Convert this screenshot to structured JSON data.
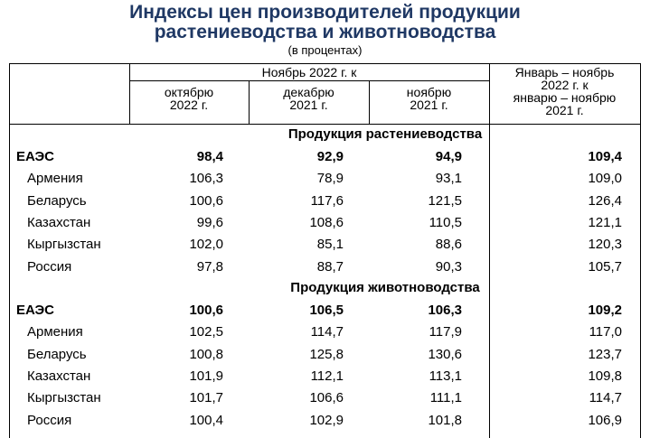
{
  "title_line1": "Индексы цен производителей продукции",
  "title_line2": "растениеводства и животноводства",
  "subtitle": "(в процентах)",
  "header": {
    "group": "Ноябрь 2022 г. к",
    "cols": [
      "октябрю\n2022 г.",
      "декабрю\n2021 г.",
      "ноябрю\n2021 г."
    ],
    "last": "Январь – ноябрь\n2022 г. к\nянварю – ноябрю\n2021 г."
  },
  "sections": [
    {
      "title": "Продукция растениеводства",
      "rows": [
        {
          "name": "ЕАЭС",
          "values": [
            "98,4",
            "92,9",
            "94,9",
            "109,4"
          ]
        },
        {
          "name": "Армения",
          "values": [
            "106,3",
            "78,9",
            "93,1",
            "109,0"
          ]
        },
        {
          "name": "Беларусь",
          "values": [
            "100,6",
            "117,6",
            "121,5",
            "126,4"
          ]
        },
        {
          "name": "Казахстан",
          "values": [
            "99,6",
            "108,6",
            "110,5",
            "121,1"
          ]
        },
        {
          "name": "Кыргызстан",
          "values": [
            "102,0",
            "85,1",
            "88,6",
            "120,3"
          ]
        },
        {
          "name": "Россия",
          "values": [
            "97,8",
            "88,7",
            "90,3",
            "105,7"
          ]
        }
      ]
    },
    {
      "title": "Продукция животноводства",
      "rows": [
        {
          "name": "ЕАЭС",
          "values": [
            "100,6",
            "106,5",
            "106,3",
            "109,2"
          ]
        },
        {
          "name": "Армения",
          "values": [
            "102,5",
            "114,7",
            "117,9",
            "117,0"
          ]
        },
        {
          "name": "Беларусь",
          "values": [
            "100,8",
            "125,8",
            "130,6",
            "123,7"
          ]
        },
        {
          "name": "Казахстан",
          "values": [
            "101,9",
            "112,1",
            "113,1",
            "109,8"
          ]
        },
        {
          "name": "Кыргызстан",
          "values": [
            "101,7",
            "106,6",
            "111,1",
            "114,7"
          ]
        },
        {
          "name": "Россия",
          "values": [
            "100,4",
            "102,9",
            "101,8",
            "106,9"
          ]
        }
      ]
    }
  ]
}
